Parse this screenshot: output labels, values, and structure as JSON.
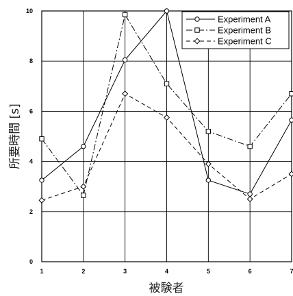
{
  "chart_data": {
    "type": "line",
    "title": "",
    "xlabel": "被験者",
    "ylabel": "所要時間 [s]",
    "x": [
      1,
      2,
      3,
      4,
      5,
      6,
      7
    ],
    "xlim": [
      1,
      7
    ],
    "ylim": [
      0,
      10
    ],
    "xticks": [
      "1",
      "2",
      "3",
      "4",
      "5",
      "6",
      "7"
    ],
    "yticks": [
      "0",
      "2",
      "4",
      "6",
      "8",
      "10"
    ],
    "grid": true,
    "legend_position": "top-right",
    "series": [
      {
        "name": "Experiment A",
        "marker": "circle",
        "dash": "solid",
        "values": [
          3.25,
          4.6,
          8.05,
          10.0,
          3.25,
          2.7,
          5.65
        ]
      },
      {
        "name": "Experiment B",
        "marker": "square",
        "dash": "dashdot",
        "values": [
          4.9,
          2.65,
          9.85,
          7.1,
          5.2,
          4.6,
          6.7
        ]
      },
      {
        "name": "Experiment C",
        "marker": "diamond",
        "dash": "dashed",
        "values": [
          2.45,
          3.0,
          6.7,
          5.75,
          3.9,
          2.5,
          3.5
        ]
      }
    ]
  }
}
